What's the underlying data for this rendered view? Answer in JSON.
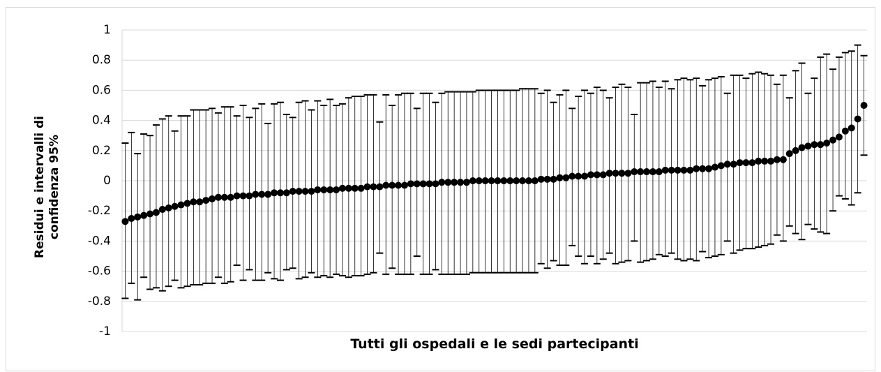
{
  "chart_data": {
    "type": "errorbar",
    "ylabel": "Residui e intervalli di confidenza 95%",
    "xlabel": "Tutti gli ospedali e le sedi partecipanti",
    "ylim": [
      -1,
      1
    ],
    "yticks": [
      -1,
      -0.8,
      -0.6,
      -0.4,
      -0.2,
      0,
      0.2,
      0.4,
      0.6,
      0.8,
      1
    ],
    "grid": true,
    "color": "#000000",
    "values": [
      -0.27,
      -0.25,
      -0.24,
      -0.23,
      -0.22,
      -0.21,
      -0.19,
      -0.18,
      -0.17,
      -0.16,
      -0.15,
      -0.14,
      -0.14,
      -0.13,
      -0.12,
      -0.11,
      -0.11,
      -0.11,
      -0.1,
      -0.1,
      -0.1,
      -0.09,
      -0.09,
      -0.09,
      -0.08,
      -0.08,
      -0.08,
      -0.07,
      -0.07,
      -0.07,
      -0.07,
      -0.06,
      -0.06,
      -0.06,
      -0.06,
      -0.05,
      -0.05,
      -0.05,
      -0.05,
      -0.04,
      -0.04,
      -0.04,
      -0.03,
      -0.03,
      -0.03,
      -0.03,
      -0.02,
      -0.02,
      -0.02,
      -0.02,
      -0.02,
      -0.01,
      -0.01,
      -0.01,
      -0.01,
      -0.01,
      0,
      0,
      0,
      0,
      0,
      0,
      0,
      0,
      0,
      0,
      0,
      0.01,
      0.01,
      0.01,
      0.02,
      0.02,
      0.03,
      0.03,
      0.03,
      0.04,
      0.04,
      0.04,
      0.05,
      0.05,
      0.05,
      0.05,
      0.06,
      0.06,
      0.06,
      0.06,
      0.06,
      0.07,
      0.07,
      0.07,
      0.07,
      0.07,
      0.08,
      0.08,
      0.08,
      0.09,
      0.1,
      0.11,
      0.11,
      0.12,
      0.12,
      0.12,
      0.13,
      0.13,
      0.13,
      0.14,
      0.14,
      0.18,
      0.2,
      0.22,
      0.23,
      0.24,
      0.24,
      0.25,
      0.27,
      0.29,
      0.33,
      0.35,
      0.41,
      0.5
    ],
    "high": [
      0.25,
      0.32,
      0.18,
      0.31,
      0.3,
      0.37,
      0.41,
      0.43,
      0.33,
      0.43,
      0.43,
      0.47,
      0.47,
      0.47,
      0.48,
      0.45,
      0.49,
      0.49,
      0.43,
      0.5,
      0.42,
      0.48,
      0.51,
      0.38,
      0.51,
      0.52,
      0.44,
      0.42,
      0.52,
      0.53,
      0.47,
      0.53,
      0.5,
      0.54,
      0.5,
      0.51,
      0.55,
      0.56,
      0.56,
      0.57,
      0.57,
      0.39,
      0.57,
      0.5,
      0.57,
      0.58,
      0.58,
      0.48,
      0.58,
      0.58,
      0.52,
      0.58,
      0.59,
      0.59,
      0.59,
      0.59,
      0.59,
      0.6,
      0.6,
      0.6,
      0.6,
      0.6,
      0.6,
      0.6,
      0.61,
      0.61,
      0.61,
      0.58,
      0.6,
      0.52,
      0.57,
      0.6,
      0.48,
      0.56,
      0.6,
      0.58,
      0.62,
      0.6,
      0.55,
      0.62,
      0.64,
      0.62,
      0.44,
      0.65,
      0.65,
      0.66,
      0.62,
      0.66,
      0.61,
      0.67,
      0.68,
      0.67,
      0.68,
      0.63,
      0.67,
      0.68,
      0.69,
      0.58,
      0.7,
      0.7,
      0.68,
      0.71,
      0.72,
      0.71,
      0.7,
      0.64,
      0.7,
      0.55,
      0.73,
      0.78,
      0.58,
      0.68,
      0.82,
      0.84,
      0.74,
      0.82,
      0.85,
      0.86,
      0.9,
      0.83
    ],
    "low": [
      -0.78,
      -0.68,
      -0.79,
      -0.64,
      -0.72,
      -0.71,
      -0.73,
      -0.7,
      -0.66,
      -0.71,
      -0.7,
      -0.69,
      -0.69,
      -0.68,
      -0.68,
      -0.64,
      -0.68,
      -0.67,
      -0.56,
      -0.66,
      -0.59,
      -0.66,
      -0.66,
      -0.61,
      -0.65,
      -0.66,
      -0.59,
      -0.58,
      -0.65,
      -0.64,
      -0.61,
      -0.64,
      -0.63,
      -0.64,
      -0.62,
      -0.63,
      -0.64,
      -0.63,
      -0.63,
      -0.62,
      -0.61,
      -0.48,
      -0.62,
      -0.58,
      -0.62,
      -0.62,
      -0.62,
      -0.5,
      -0.62,
      -0.62,
      -0.59,
      -0.62,
      -0.62,
      -0.62,
      -0.62,
      -0.62,
      -0.61,
      -0.61,
      -0.61,
      -0.61,
      -0.61,
      -0.61,
      -0.61,
      -0.61,
      -0.61,
      -0.61,
      -0.61,
      -0.55,
      -0.58,
      -0.53,
      -0.56,
      -0.56,
      -0.43,
      -0.5,
      -0.55,
      -0.5,
      -0.55,
      -0.52,
      -0.48,
      -0.55,
      -0.54,
      -0.53,
      -0.4,
      -0.54,
      -0.53,
      -0.52,
      -0.49,
      -0.5,
      -0.48,
      -0.52,
      -0.53,
      -0.52,
      -0.53,
      -0.47,
      -0.51,
      -0.5,
      -0.49,
      -0.4,
      -0.48,
      -0.46,
      -0.45,
      -0.45,
      -0.44,
      -0.43,
      -0.42,
      -0.36,
      -0.4,
      -0.3,
      -0.35,
      -0.39,
      -0.29,
      -0.32,
      -0.34,
      -0.35,
      -0.2,
      -0.1,
      -0.12,
      -0.16,
      -0.08,
      0.17
    ]
  }
}
